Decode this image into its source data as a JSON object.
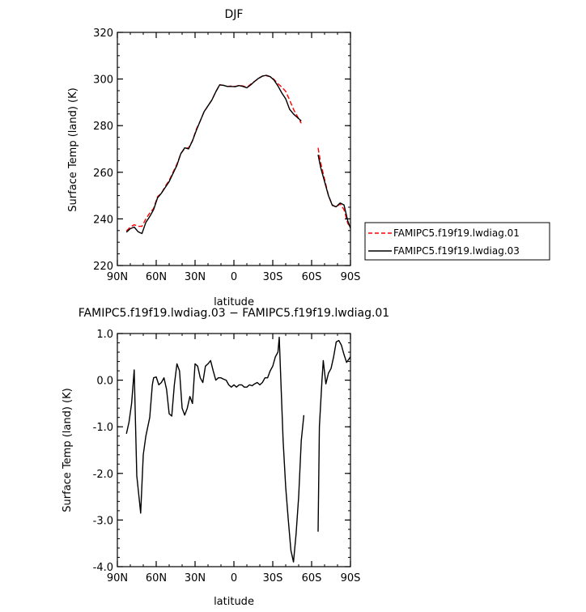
{
  "chart_data": [
    {
      "type": "line",
      "title": "DJF",
      "xlabel": "latitude",
      "ylabel": "Surface Temp (land) (K)",
      "xlim": [
        90,
        -90
      ],
      "ylim": [
        220,
        320
      ],
      "x_ticks": [
        {
          "value": 90,
          "label": "90N"
        },
        {
          "value": 60,
          "label": "60N"
        },
        {
          "value": 30,
          "label": "30N"
        },
        {
          "value": 0,
          "label": "0"
        },
        {
          "value": -30,
          "label": "30S"
        },
        {
          "value": -60,
          "label": "60S"
        },
        {
          "value": -90,
          "label": "90S"
        }
      ],
      "y_ticks": [
        {
          "value": 220,
          "label": "220"
        },
        {
          "value": 240,
          "label": "240"
        },
        {
          "value": 260,
          "label": "260"
        },
        {
          "value": 280,
          "label": "280"
        },
        {
          "value": 300,
          "label": "300"
        },
        {
          "value": 320,
          "label": "320"
        }
      ],
      "legend": {
        "placement": "right-outside"
      },
      "series": [
        {
          "name": "FAMIPC5.f19f19.lwdiag.01",
          "color": "#ff0000",
          "dash": "dashed",
          "segments": [
            [
              [
                83,
                234.8
              ],
              [
                80,
                236.5
              ],
              [
                77,
                237.5
              ],
              [
                74,
                236.8
              ],
              [
                71,
                236.8
              ],
              [
                68,
                240
              ],
              [
                65,
                242.5
              ],
              [
                62,
                244.5
              ],
              [
                59,
                249.5
              ],
              [
                56,
                251
              ],
              [
                53,
                254
              ],
              [
                50,
                256.5
              ],
              [
                47,
                260
              ],
              [
                44,
                263.5
              ],
              [
                41,
                268
              ],
              [
                38,
                270.2
              ],
              [
                35,
                270.5
              ],
              [
                32,
                273.5
              ],
              [
                29,
                278.5
              ],
              [
                26,
                282
              ],
              [
                23,
                286
              ],
              [
                20,
                288.5
              ],
              [
                17,
                291
              ],
              [
                14,
                294.5
              ],
              [
                11,
                297.5
              ],
              [
                8,
                297.3
              ],
              [
                5,
                296.8
              ],
              [
                2,
                297
              ],
              [
                -1,
                296.8
              ],
              [
                -4,
                297.3
              ],
              [
                -7,
                297
              ],
              [
                -10,
                296.4
              ],
              [
                -13,
                297.8
              ],
              [
                -16,
                299
              ],
              [
                -19,
                300.2
              ],
              [
                -22,
                301.3
              ],
              [
                -25,
                301.4
              ],
              [
                -28,
                301
              ],
              [
                -31,
                299.8
              ],
              [
                -34,
                298
              ],
              [
                -37,
                296.5
              ],
              [
                -40,
                294.7
              ],
              [
                -43,
                291
              ],
              [
                -46,
                287
              ],
              [
                -49,
                284
              ],
              [
                -52,
                281
              ]
            ],
            [
              [
                -65,
                270.5
              ],
              [
                -67,
                264
              ],
              [
                -70,
                257
              ],
              [
                -73,
                250
              ],
              [
                -76,
                246
              ],
              [
                -79,
                245
              ],
              [
                -82,
                246.5
              ],
              [
                -85,
                244
              ],
              [
                -88,
                238
              ],
              [
                -90,
                236.5
              ]
            ]
          ]
        },
        {
          "name": "FAMIPC5.f19f19.lwdiag.03",
          "color": "#000000",
          "dash": "solid",
          "segments": [
            [
              [
                83,
                234.3
              ],
              [
                80,
                235.8
              ],
              [
                77,
                236.5
              ],
              [
                74,
                234.5
              ],
              [
                71,
                233.7
              ],
              [
                68,
                238.5
              ],
              [
                65,
                241
              ],
              [
                62,
                244
              ],
              [
                59,
                249
              ],
              [
                56,
                251
              ],
              [
                53,
                253.5
              ],
              [
                50,
                256
              ],
              [
                47,
                259.5
              ],
              [
                44,
                263
              ],
              [
                41,
                268
              ],
              [
                38,
                270.5
              ],
              [
                35,
                270
              ],
              [
                32,
                273.5
              ],
              [
                29,
                278
              ],
              [
                26,
                282
              ],
              [
                23,
                286
              ],
              [
                20,
                288.5
              ],
              [
                17,
                291
              ],
              [
                14,
                294.5
              ],
              [
                11,
                297.5
              ],
              [
                8,
                297.3
              ],
              [
                5,
                296.8
              ],
              [
                2,
                296.8
              ],
              [
                -1,
                296.7
              ],
              [
                -4,
                297.2
              ],
              [
                -7,
                296.8
              ],
              [
                -10,
                296.2
              ],
              [
                -13,
                297.5
              ],
              [
                -16,
                299
              ],
              [
                -19,
                300.3
              ],
              [
                -22,
                301.2
              ],
              [
                -25,
                301.6
              ],
              [
                -28,
                301
              ],
              [
                -31,
                299.5
              ],
              [
                -34,
                297
              ],
              [
                -37,
                294
              ],
              [
                -40,
                291.5
              ],
              [
                -43,
                287
              ],
              [
                -46,
                285
              ],
              [
                -49,
                283.5
              ],
              [
                -52,
                282
              ]
            ],
            [
              [
                -65,
                267.5
              ],
              [
                -67,
                262
              ],
              [
                -70,
                256
              ],
              [
                -73,
                250
              ],
              [
                -76,
                245.8
              ],
              [
                -79,
                245.2
              ],
              [
                -82,
                246.8
              ],
              [
                -85,
                246
              ],
              [
                -88,
                239
              ],
              [
                -90,
                236
              ]
            ]
          ]
        }
      ]
    },
    {
      "type": "line",
      "title": "FAMIPC5.f19f19.lwdiag.03 − FAMIPC5.f19f19.lwdiag.01",
      "xlabel": "latitude",
      "ylabel": "Surface Temp (land) (K)",
      "xlim": [
        90,
        -90
      ],
      "ylim": [
        -4.0,
        1.0
      ],
      "x_ticks": [
        {
          "value": 90,
          "label": "90N"
        },
        {
          "value": 60,
          "label": "60N"
        },
        {
          "value": 30,
          "label": "30N"
        },
        {
          "value": 0,
          "label": "0"
        },
        {
          "value": -30,
          "label": "30S"
        },
        {
          "value": -60,
          "label": "60S"
        },
        {
          "value": -90,
          "label": "90S"
        }
      ],
      "y_ticks": [
        {
          "value": 1.0,
          "label": "1.0"
        },
        {
          "value": 0.0,
          "label": "0.0"
        },
        {
          "value": -1.0,
          "label": "-1.0"
        },
        {
          "value": -2.0,
          "label": "-2.0"
        },
        {
          "value": -3.0,
          "label": "-3.0"
        },
        {
          "value": -4.0,
          "label": "-4.0"
        }
      ],
      "series": [
        {
          "color": "#000000",
          "dash": "solid",
          "segments": [
            [
              [
                83,
                -1.15
              ],
              [
                81,
                -0.9
              ],
              [
                79,
                -0.5
              ],
              [
                77,
                0.22
              ],
              [
                75,
                -2.05
              ],
              [
                72,
                -2.85
              ],
              [
                70,
                -1.6
              ],
              [
                68,
                -1.2
              ],
              [
                65,
                -0.8
              ],
              [
                63,
                -0.1
              ],
              [
                62,
                0.05
              ],
              [
                60,
                0.07
              ],
              [
                58,
                -0.1
              ],
              [
                56,
                -0.05
              ],
              [
                54,
                0.05
              ],
              [
                52,
                -0.2
              ],
              [
                50,
                -0.72
              ],
              [
                48,
                -0.77
              ],
              [
                46,
                -0.1
              ],
              [
                44,
                0.35
              ],
              [
                42,
                0.2
              ],
              [
                40,
                -0.6
              ],
              [
                38,
                -0.75
              ],
              [
                36,
                -0.6
              ],
              [
                34,
                -0.35
              ],
              [
                32,
                -0.5
              ],
              [
                30,
                0.35
              ],
              [
                28,
                0.3
              ],
              [
                26,
                0.05
              ],
              [
                24,
                -0.05
              ],
              [
                22,
                0.3
              ],
              [
                20,
                0.35
              ],
              [
                18,
                0.42
              ],
              [
                16,
                0.2
              ],
              [
                14,
                0.0
              ],
              [
                12,
                0.05
              ],
              [
                10,
                0.05
              ],
              [
                8,
                0.02
              ],
              [
                6,
                0.0
              ],
              [
                4,
                -0.1
              ],
              [
                2,
                -0.15
              ],
              [
                0,
                -0.1
              ],
              [
                -2,
                -0.15
              ],
              [
                -4,
                -0.1
              ],
              [
                -6,
                -0.1
              ],
              [
                -8,
                -0.15
              ],
              [
                -10,
                -0.15
              ],
              [
                -12,
                -0.1
              ],
              [
                -14,
                -0.12
              ],
              [
                -16,
                -0.08
              ],
              [
                -18,
                -0.05
              ],
              [
                -20,
                -0.1
              ],
              [
                -22,
                -0.05
              ],
              [
                -24,
                0.05
              ],
              [
                -26,
                0.05
              ],
              [
                -28,
                0.2
              ],
              [
                -30,
                0.3
              ],
              [
                -32,
                0.5
              ],
              [
                -34,
                0.6
              ],
              [
                -35,
                0.92
              ],
              [
                -38,
                -1.3
              ],
              [
                -40,
                -2.3
              ],
              [
                -42,
                -3.0
              ],
              [
                -44,
                -3.65
              ],
              [
                -46,
                -3.9
              ],
              [
                -48,
                -3.3
              ],
              [
                -50,
                -2.5
              ],
              [
                -52,
                -1.3
              ],
              [
                -54,
                -0.75
              ]
            ],
            [
              [
                -65,
                -3.25
              ],
              [
                -66,
                -1.0
              ],
              [
                -68,
                0.0
              ],
              [
                -69,
                0.42
              ],
              [
                -71,
                -0.08
              ],
              [
                -73,
                0.15
              ],
              [
                -75,
                0.25
              ],
              [
                -77,
                0.5
              ],
              [
                -79,
                0.82
              ],
              [
                -81,
                0.85
              ],
              [
                -83,
                0.75
              ],
              [
                -85,
                0.55
              ],
              [
                -87,
                0.38
              ],
              [
                -90,
                0.5
              ]
            ]
          ]
        }
      ]
    }
  ]
}
